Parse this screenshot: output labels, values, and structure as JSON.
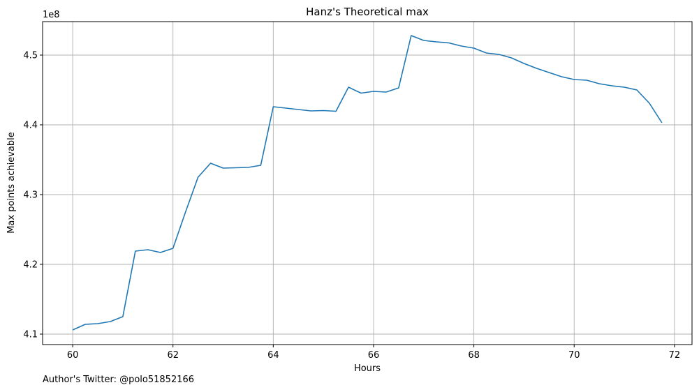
{
  "chart_data": {
    "type": "line",
    "title": "Hanz's Theoretical max",
    "xlabel": "Hours",
    "ylabel": "Max points achievable",
    "y_scale_label": "1e8",
    "grid": true,
    "xlim": [
      59.4,
      72.35
    ],
    "ylim": [
      4.085,
      4.548
    ],
    "xticks": [
      60,
      62,
      64,
      66,
      68,
      70,
      72
    ],
    "xtick_labels": [
      "60",
      "62",
      "64",
      "66",
      "68",
      "70",
      "72"
    ],
    "yticks": [
      4.1,
      4.2,
      4.3,
      4.4,
      4.5
    ],
    "ytick_labels": [
      "4.1",
      "4.2",
      "4.3",
      "4.4",
      "4.5"
    ],
    "series": [
      {
        "color": "#1f77b4",
        "x": [
          60.0,
          60.25,
          60.5,
          60.75,
          61.0,
          61.25,
          61.5,
          61.75,
          62.0,
          62.25,
          62.5,
          62.75,
          63.0,
          63.25,
          63.5,
          63.75,
          64.0,
          64.25,
          64.5,
          64.75,
          65.0,
          65.25,
          65.5,
          65.75,
          66.0,
          66.25,
          66.5,
          66.75,
          67.0,
          67.25,
          67.5,
          67.75,
          68.0,
          68.25,
          68.5,
          68.75,
          69.0,
          69.25,
          69.5,
          69.75,
          70.0,
          70.25,
          70.5,
          70.75,
          71.0,
          71.25,
          71.5,
          71.75
        ],
        "y": [
          4.106,
          4.114,
          4.115,
          4.118,
          4.125,
          4.219,
          4.221,
          4.217,
          4.223,
          4.275,
          4.325,
          4.345,
          4.338,
          4.3385,
          4.339,
          4.342,
          4.426,
          4.424,
          4.422,
          4.42,
          4.4205,
          4.4195,
          4.454,
          4.4455,
          4.448,
          4.447,
          4.453,
          4.528,
          4.521,
          4.519,
          4.5175,
          4.513,
          4.51,
          4.503,
          4.501,
          4.496,
          4.488,
          4.481,
          4.475,
          4.469,
          4.465,
          4.464,
          4.459,
          4.456,
          4.454,
          4.45,
          4.431,
          4.403
        ]
      }
    ]
  },
  "footer": {
    "text": "Author's Twitter: @polo51852166"
  }
}
